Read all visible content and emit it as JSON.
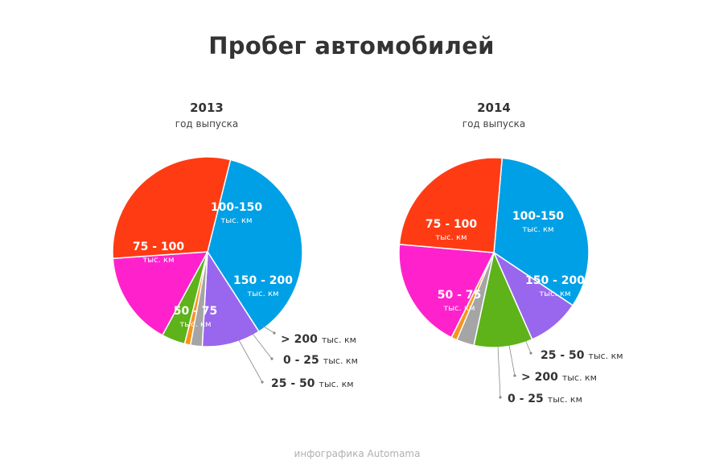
{
  "title": "Пробег автомобилей",
  "footer": "инфографика Automama",
  "colors": {
    "0 - 25": "#f7941d",
    "25 - 50": "#5db319",
    "50 - 75": "#ff22cc",
    "75 - 100": "#ff3b14",
    "100-150": "#00a0e6",
    "150 - 200": "#9966ee",
    "> 200": "#a5a5a5"
  },
  "chart_data": [
    {
      "type": "pie",
      "year": "2013",
      "subtitle": "год выпуска",
      "unit": "тыс. км",
      "slices": [
        {
          "label": "100-150",
          "value": 37.0
        },
        {
          "label": "150 - 200",
          "value": 10.0
        },
        {
          "label": "> 200",
          "value": 2.0
        },
        {
          "label": "0 - 25",
          "value": 1.0
        },
        {
          "label": "25 - 50",
          "value": 4.0
        },
        {
          "label": "50 - 75",
          "value": 16.0
        },
        {
          "label": "75 - 100",
          "value": 30.0
        }
      ]
    },
    {
      "type": "pie",
      "year": "2014",
      "subtitle": "год выпуска",
      "unit": "тыс. км",
      "slices": [
        {
          "label": "100-150",
          "value": 33.0
        },
        {
          "label": "150 - 200",
          "value": 9.0
        },
        {
          "label": "25 - 50",
          "value": 10.0
        },
        {
          "label": "> 200",
          "value": 3.0
        },
        {
          "label": "0 - 25",
          "value": 1.0
        },
        {
          "label": "50 - 75",
          "value": 19.0
        },
        {
          "label": "75 - 100",
          "value": 25.0
        }
      ]
    }
  ]
}
